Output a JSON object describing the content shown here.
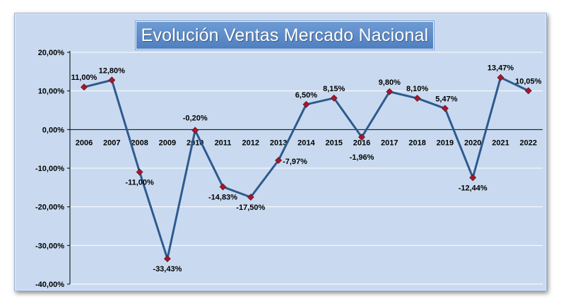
{
  "chart_data": {
    "type": "line",
    "title": "Evolución Ventas Mercado Nacional",
    "xlabel": "",
    "ylabel": "",
    "categories": [
      "2006",
      "2007",
      "2008",
      "2009",
      "2010",
      "2011",
      "2012",
      "2013",
      "2014",
      "2015",
      "2016",
      "2017",
      "2018",
      "2019",
      "2020",
      "2021",
      "2022"
    ],
    "series": [
      {
        "name": "Evolución Ventas",
        "values": [
          11.0,
          12.8,
          -11.0,
          -33.43,
          -0.2,
          -14.83,
          -17.5,
          -7.97,
          6.5,
          8.15,
          -1.96,
          9.8,
          8.1,
          5.47,
          -12.44,
          13.47,
          10.05
        ],
        "data_labels": [
          "11,00%",
          "12,80%",
          "-11,00%",
          "-33,43%",
          "-0,20%",
          "-14,83%",
          "-17,50%",
          "-7,97%",
          "6,50%",
          "8,15%",
          "-1,96%",
          "9,80%",
          "8,10%",
          "5,47%",
          "-12,44%",
          "13,47%",
          "10,05%"
        ],
        "line_color": "#2e5a8e",
        "marker_color": "#a3182c"
      }
    ],
    "ylim": [
      -40,
      20
    ],
    "yticks": [
      20,
      10,
      0,
      -10,
      -20,
      -30,
      -40
    ],
    "ytick_labels": [
      "20,00%",
      "10,00%",
      "0,00%",
      "-10,00%",
      "-20,00%",
      "-30,00%",
      "-40,00%"
    ],
    "grid": true,
    "legend": "none",
    "colors": {
      "plot_background": "#c9daf0",
      "title_background": "#5b88c8",
      "gridline": "#ffffff"
    }
  }
}
